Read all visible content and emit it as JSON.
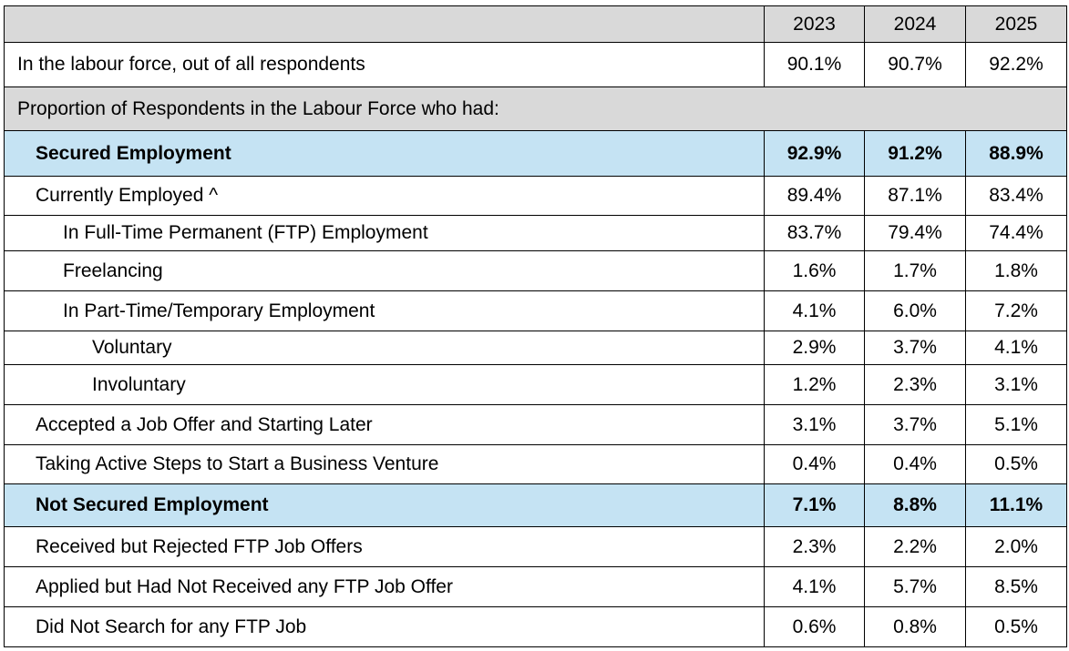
{
  "table": {
    "columns": [
      "2023",
      "2024",
      "2025"
    ],
    "labour_force": {
      "label": "In the labour force, out of all respondents",
      "values": [
        "90.1%",
        "90.7%",
        "92.2%"
      ]
    },
    "section_heading": "Proportion of Respondents in the Labour Force who had:",
    "rows": [
      {
        "label": "Secured Employment",
        "values": [
          "92.9%",
          "91.2%",
          "88.9%"
        ]
      },
      {
        "label": "Currently Employed ^",
        "values": [
          "89.4%",
          "87.1%",
          "83.4%"
        ]
      },
      {
        "label": "In Full-Time Permanent (FTP) Employment",
        "values": [
          "83.7%",
          "79.4%",
          "74.4%"
        ]
      },
      {
        "label": "Freelancing",
        "values": [
          "1.6%",
          "1.7%",
          "1.8%"
        ]
      },
      {
        "label": "In Part-Time/Temporary Employment",
        "values": [
          "4.1%",
          "6.0%",
          "7.2%"
        ]
      },
      {
        "label": "Voluntary",
        "values": [
          "2.9%",
          "3.7%",
          "4.1%"
        ]
      },
      {
        "label": "Involuntary",
        "values": [
          "1.2%",
          "2.3%",
          "3.1%"
        ]
      },
      {
        "label": "Accepted a Job Offer and Starting Later",
        "values": [
          "3.1%",
          "3.7%",
          "5.1%"
        ]
      },
      {
        "label": "Taking Active Steps to Start a Business Venture",
        "values": [
          "0.4%",
          "0.4%",
          "0.5%"
        ]
      },
      {
        "label": "Not Secured Employment",
        "values": [
          "7.1%",
          "8.8%",
          "11.1%"
        ]
      },
      {
        "label": "Received but Rejected FTP Job Offers",
        "values": [
          "2.3%",
          "2.2%",
          "2.0%"
        ]
      },
      {
        "label": "Applied but Had Not Received any FTP Job Offer",
        "values": [
          "4.1%",
          "5.7%",
          "8.5%"
        ]
      },
      {
        "label": "Did Not Search for any FTP Job",
        "values": [
          "0.6%",
          "0.8%",
          "0.5%"
        ]
      }
    ]
  }
}
